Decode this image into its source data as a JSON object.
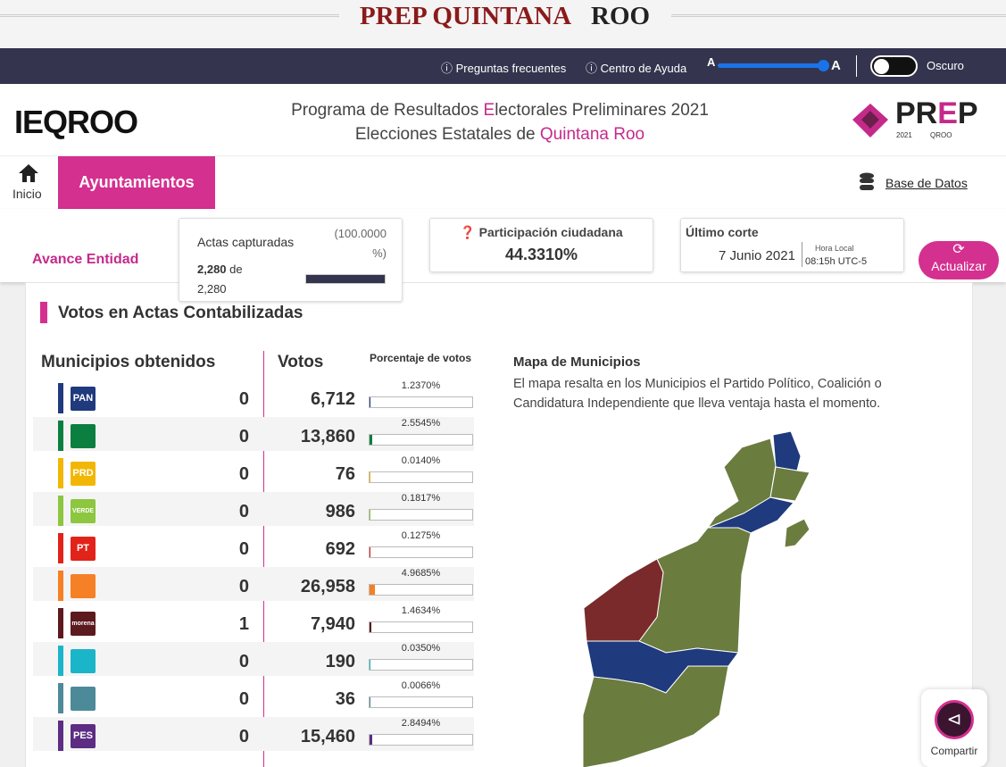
{
  "banner": {
    "title_a": "PREP QUINTANA",
    "title_b": "ROO"
  },
  "topbar": {
    "faq": "Preguntas frecuentes",
    "help": "Centro de Ayuda",
    "font_small": "A",
    "font_large": "A",
    "theme": "Oscuro"
  },
  "header": {
    "logo": "IEQROO",
    "line1_a": "Programa de Resultados ",
    "line1_b": "E",
    "line1_c": "lectorales Preliminares 2021",
    "line2_a": "Elecciones Estatales de ",
    "line2_b": "Quintana Roo",
    "prep_a": "PR",
    "prep_b": "E",
    "prep_c": "P",
    "prep_year": "2021",
    "prep_state": "QROO"
  },
  "nav": {
    "home": "Inicio",
    "active": "Ayuntamientos",
    "db": "Base de Datos"
  },
  "status": {
    "section": "Avance Entidad",
    "actas": {
      "title": "Actas capturadas",
      "pct": {
        "value": 100,
        "label": "(100.0000 %)"
      },
      "count": "2,280",
      "of": "de",
      "total": "2,280"
    },
    "participacion": {
      "title": "Participación ciudadana",
      "value": "44.3310%"
    },
    "corte": {
      "title": "Último corte",
      "date": "7 Junio 2021",
      "tz_label": "Hora Local",
      "time": "08:15h UTC-5"
    },
    "refresh": "Actualizar"
  },
  "content": {
    "title": "Votos en Actas Contabilizadas",
    "col_municipios": "Municipios obtenidos",
    "col_votos": "Votos",
    "col_pct": "Porcentaje de votos",
    "parties": [
      {
        "logo": "PAN",
        "color": "#1f3a7d",
        "municipios": 0,
        "votos": "6,712",
        "pct": {
          "value": 1.237,
          "label": "1.2370%"
        }
      },
      {
        "color": "#0a7f3f",
        "municipios": 0,
        "votos": "13,860",
        "pct": {
          "value": 2.5545,
          "label": "2.5545%"
        }
      },
      {
        "logo": "PRD",
        "color": "#f2b705",
        "municipios": 0,
        "votos": "76",
        "pct": {
          "value": 0.014,
          "label": "0.0140%"
        }
      },
      {
        "logo": "VERDE",
        "color": "#8dc63f",
        "municipios": 0,
        "votos": "986",
        "pct": {
          "value": 0.1817,
          "label": "0.1817%"
        }
      },
      {
        "logo": "PT",
        "color": "#e2231a",
        "municipios": 0,
        "votos": "692",
        "pct": {
          "value": 0.1275,
          "label": "0.1275%"
        }
      },
      {
        "color": "#f58025",
        "municipios": 0,
        "votos": "26,958",
        "pct": {
          "value": 4.9685,
          "label": "4.9685%"
        }
      },
      {
        "logo": "morena",
        "color": "#5c1a1e",
        "municipios": 1,
        "votos": "7,940",
        "pct": {
          "value": 1.4634,
          "label": "1.4634%"
        }
      },
      {
        "color": "#1bb5c9",
        "municipios": 0,
        "votos": "190",
        "pct": {
          "value": 0.035,
          "label": "0.0350%"
        }
      },
      {
        "color": "#4d8a99",
        "municipios": 0,
        "votos": "36",
        "pct": {
          "value": 0.0066,
          "label": "0.0066%"
        }
      },
      {
        "logo": "PES",
        "color": "#5c2d82",
        "municipios": 0,
        "votos": "15,460",
        "pct": {
          "value": 2.8494,
          "label": "2.8494%"
        }
      }
    ],
    "map": {
      "title": "Mapa de Municipios",
      "description": "El mapa resalta en los Municipios el Partido Político, Coalición o Candidatura Independiente que lleva ventaja hasta el momento."
    }
  },
  "share": "Compartir"
}
